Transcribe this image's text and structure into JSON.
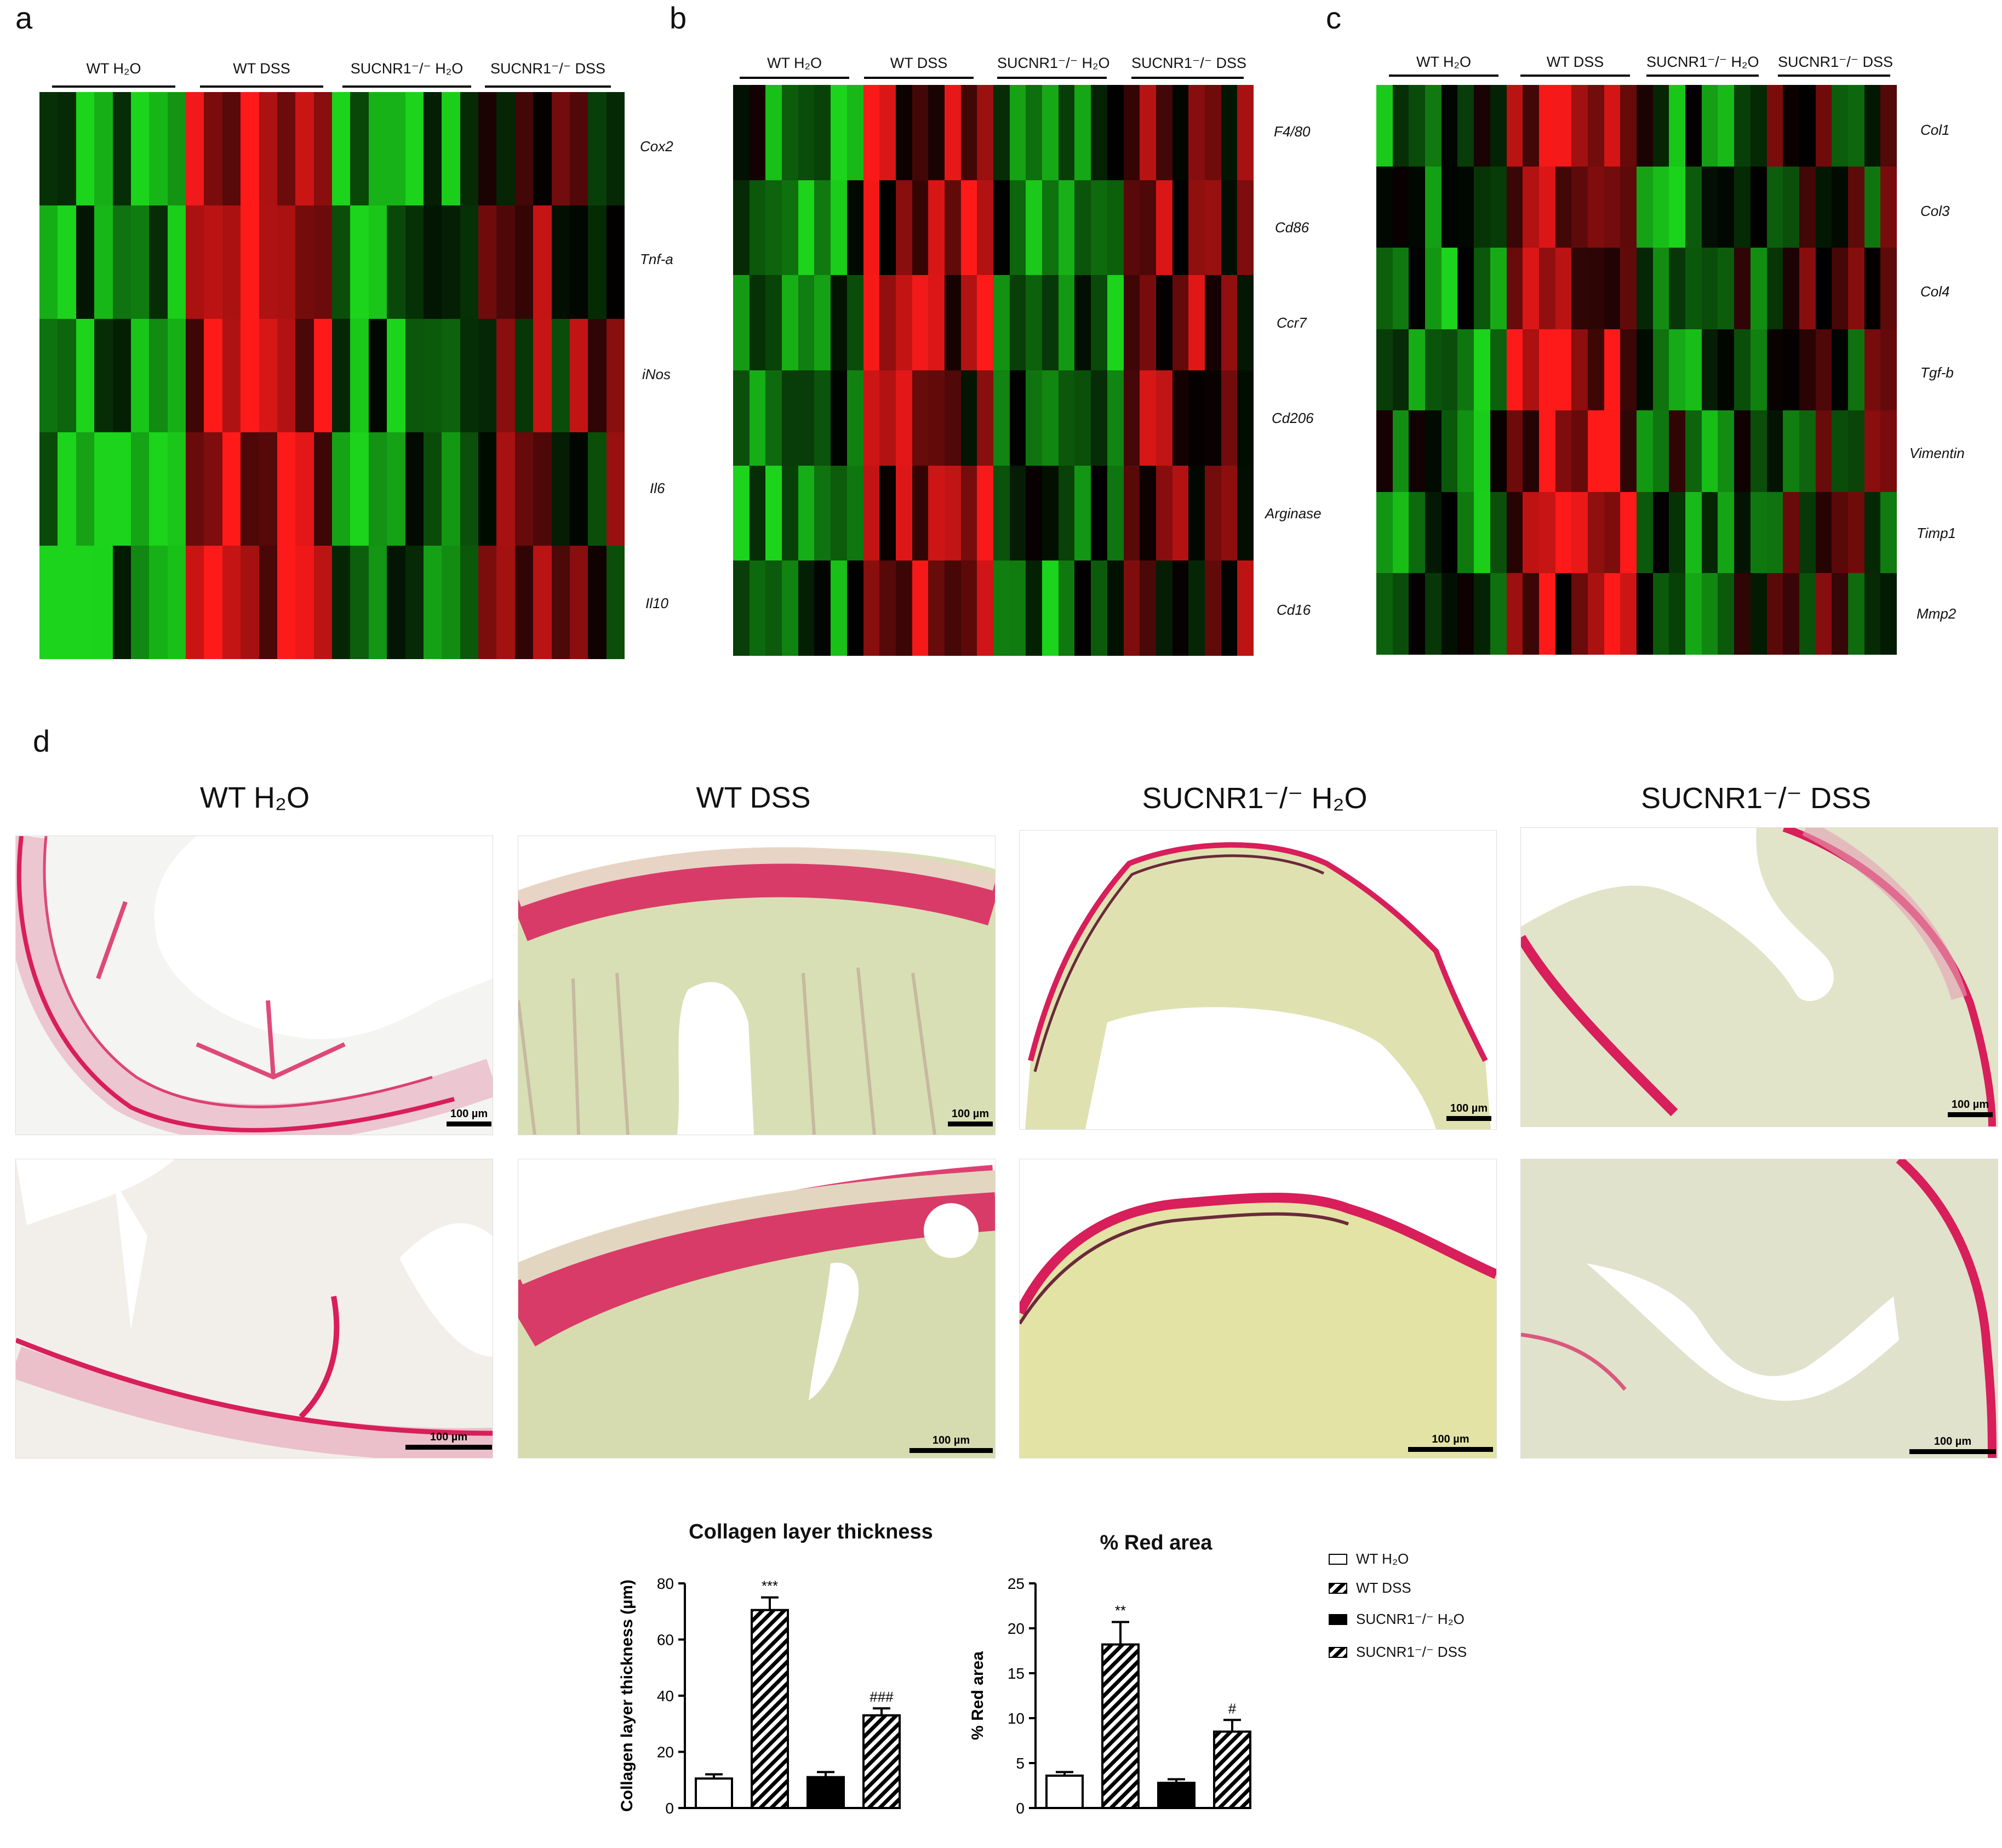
{
  "panels": {
    "a": "a",
    "b": "b",
    "c": "c",
    "d": "d"
  },
  "heatmaps": [
    {
      "group_labels": [
        "WT H₂O",
        "WT DSS",
        "SUCNR1⁻/⁻ H₂O",
        "SUCNR1⁻/⁻ DSS"
      ],
      "genes": [
        "Cox2",
        "Tnf-a",
        "iNos",
        "Il6",
        "Il10"
      ]
    },
    {
      "group_labels": [
        "WT H₂O",
        "WT DSS",
        "SUCNR1⁻/⁻ H₂O",
        "SUCNR1⁻/⁻ DSS"
      ],
      "genes": [
        "F4/80",
        "Cd86",
        "Ccr7",
        "Cd206",
        "Arginase",
        "Cd16"
      ]
    },
    {
      "group_labels": [
        "WT H₂O",
        "WT DSS",
        "SUCNR1⁻/⁻ H₂O",
        "SUCNR1⁻/⁻ DSS"
      ],
      "genes": [
        "Col1",
        "Col3",
        "Col4",
        "Tgf-b",
        "Vimentin",
        "Timp1",
        "Mmp2"
      ]
    }
  ],
  "histology": {
    "titles": [
      "WT H₂O",
      "WT DSS",
      "SUCNR1⁻/⁻ H₂O",
      "SUCNR1⁻/⁻ DSS"
    ],
    "scale_label": "100 µm"
  },
  "colors": {
    "up": "#ff1a1a",
    "down": "#1bd41b",
    "neutral": "#000000",
    "stain_red": "#d81e5b",
    "stain_background": "#e4e6c6"
  },
  "chart_data": [
    {
      "type": "bar",
      "title": "Collagen layer thickness",
      "ylabel": "Collagen layer thickness (µm)",
      "ylim": [
        0,
        80
      ],
      "yticks": [
        0,
        20,
        40,
        60,
        80
      ],
      "categories": [
        "WT H₂O",
        "WT DSS",
        "SUCNR1⁻/⁻ H₂O",
        "SUCNR1⁻/⁻ DSS"
      ],
      "values": [
        10.5,
        70.5,
        11,
        33
      ],
      "errors": [
        1.5,
        4.5,
        1.8,
        2.5
      ],
      "annotations": [
        "",
        "***",
        "",
        "###"
      ],
      "patterns": [
        "open",
        "hatched",
        "filled",
        "hatched"
      ]
    },
    {
      "type": "bar",
      "title": "% Red area",
      "ylabel": "% Red area",
      "ylim": [
        0,
        25
      ],
      "yticks": [
        0,
        5,
        10,
        15,
        20,
        25
      ],
      "categories": [
        "WT H₂O",
        "WT DSS",
        "SUCNR1⁻/⁻ H₂O",
        "SUCNR1⁻/⁻ DSS"
      ],
      "values": [
        3.6,
        18.2,
        2.8,
        8.5
      ],
      "errors": [
        0.4,
        2.5,
        0.4,
        1.3
      ],
      "annotations": [
        "",
        "**",
        "",
        "#"
      ],
      "patterns": [
        "open",
        "hatched",
        "filled",
        "hatched"
      ]
    }
  ],
  "legend": {
    "items": [
      "WT H₂O",
      "WT DSS",
      "SUCNR1⁻/⁻ H₂O",
      "SUCNR1⁻/⁻ DSS"
    ]
  }
}
